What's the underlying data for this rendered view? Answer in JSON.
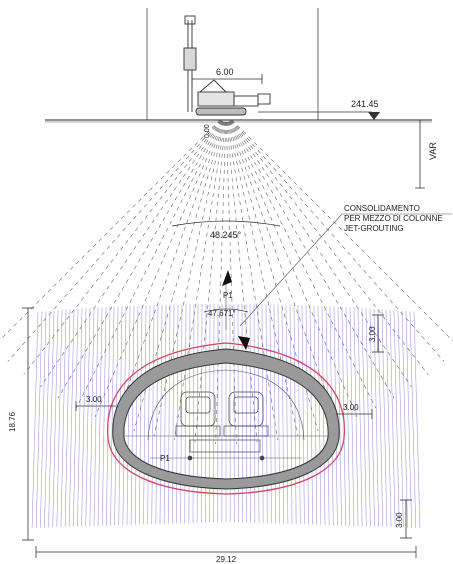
{
  "drawing": {
    "colors": {
      "columns": "#7b6fd0",
      "fan": "#666666",
      "lining": "#9a9a9a",
      "lining_edge": "#333333",
      "outer_ring": "#d9445a"
    },
    "labels": {
      "rig_offset": "6.00",
      "ground_level": "241.45",
      "variable_depth": "VAR",
      "vertical_offset": "0.00",
      "fan_angle": "48.245°",
      "inner_angle": "47.671°",
      "point_top": "P1",
      "point_side": "P1",
      "annotation": [
        "CONSOLIDAMENTO",
        "PER MEZZO DI COLONNE",
        "JET-GROUTING"
      ],
      "crown_thickness": "3.00",
      "left_thickness": "3.00",
      "right_thickness": "3.00",
      "invert_thickness": "3.00",
      "total_height": "18.76",
      "total_width": "29.12"
    }
  }
}
